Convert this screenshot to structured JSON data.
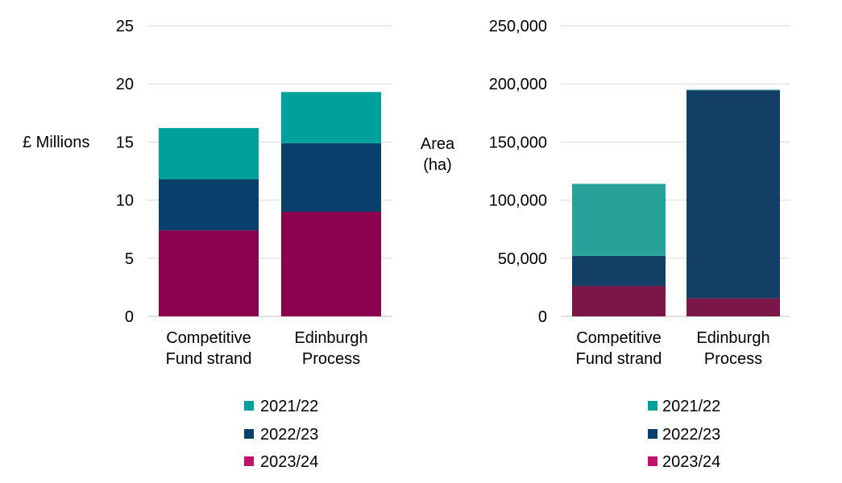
{
  "chart_data": [
    {
      "type": "bar",
      "stacked": true,
      "ylabel": "£ Millions",
      "ylim": [
        0,
        25
      ],
      "yticks": [
        0,
        5,
        10,
        15,
        20,
        25
      ],
      "ytick_labels": [
        "0",
        "5",
        "10",
        "15",
        "20",
        "25"
      ],
      "categories": [
        [
          "Competitive",
          "Fund strand"
        ],
        [
          "Edinburgh",
          "Process"
        ]
      ],
      "series": [
        {
          "name": "2023/24",
          "values": [
            7.4,
            9.0
          ],
          "color": "#8B004F"
        },
        {
          "name": "2022/23",
          "values": [
            4.4,
            5.9
          ],
          "color": "#08406C"
        },
        {
          "name": "2021/22",
          "values": [
            4.4,
            4.4
          ],
          "color": "#00A19A"
        }
      ],
      "legend_order": [
        "2021/22",
        "2022/23",
        "2023/24"
      ],
      "legend_colors": [
        "#00A19A",
        "#08406C",
        "#C0126D"
      ],
      "legend_position": "bottom",
      "grid": true
    },
    {
      "type": "bar",
      "stacked": true,
      "ylabel": "Area\n(ha)",
      "ylim": [
        0,
        250000
      ],
      "yticks": [
        0,
        50000,
        100000,
        150000,
        200000,
        250000
      ],
      "ytick_labels": [
        "0",
        "50,000",
        "100,000",
        "150,000",
        "200,000",
        "250,000"
      ],
      "categories": [
        [
          "Competitive",
          "Fund strand"
        ],
        [
          "Edinburgh",
          "Process"
        ]
      ],
      "series": [
        {
          "name": "2023/24",
          "values": [
            26000,
            15500
          ],
          "color": "#7A1748"
        },
        {
          "name": "2022/23",
          "values": [
            26000,
            179000
          ],
          "color": "#133F66"
        },
        {
          "name": "2021/22",
          "values": [
            62000,
            500
          ],
          "color": "#26A29A"
        }
      ],
      "legend_order": [
        "2021/22",
        "2022/23",
        "2023/24"
      ],
      "legend_colors": [
        "#00A19A",
        "#08406C",
        "#C0126D"
      ],
      "legend_position": "bottom",
      "grid": true
    }
  ]
}
